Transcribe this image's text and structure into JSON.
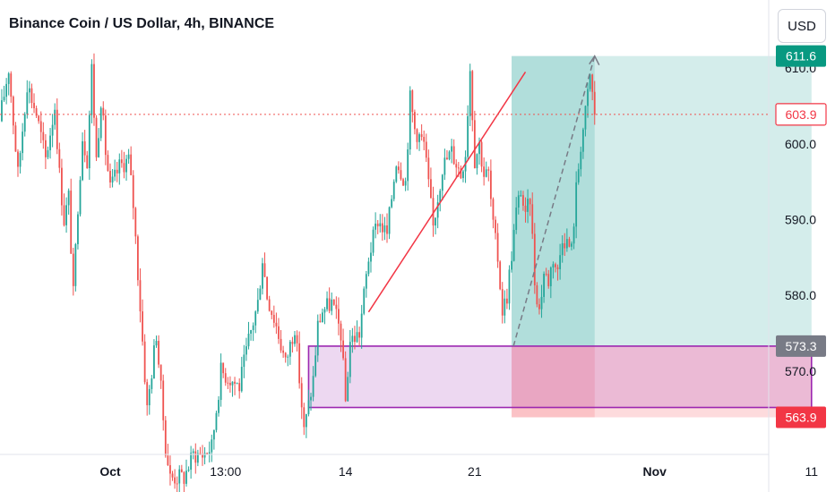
{
  "header": {
    "title": "Binance Coin / US Dollar, 4h, BINANCE",
    "currency_button": "USD"
  },
  "colors": {
    "up": "#26a69a",
    "down": "#ef5350",
    "profit_zone": "#26a69a",
    "loss_zone": "#f23645",
    "demand_zone": "#9c27b0",
    "trendline": "#f23645"
  },
  "chart_data": {
    "type": "candlestick",
    "symbol": "Binance Coin / US Dollar",
    "interval": "4h",
    "exchange": "BINANCE",
    "y_range": [
      559,
      619
    ],
    "y_ticks": [
      570.0,
      580.0,
      590.0,
      600.0,
      610.0
    ],
    "x_ticks": [
      {
        "label": "Oct",
        "x": 6
      },
      {
        "label": "13:00",
        "x": 18.5
      },
      {
        "label": "14",
        "x": 31.5
      },
      {
        "label": "21",
        "x": 45.5
      },
      {
        "label": "Nov",
        "x": 65
      },
      {
        "label": "11",
        "x": 82
      }
    ],
    "price_labels": [
      {
        "name": "target",
        "label": "611.6",
        "value": 611.6,
        "color": "#089981"
      },
      {
        "name": "current",
        "label": "603.9",
        "value": 603.9,
        "color": "#f23645",
        "outlined": true
      },
      {
        "name": "entry",
        "label": "573.3",
        "value": 573.3,
        "color": "#787b86"
      },
      {
        "name": "stop",
        "label": "563.9",
        "value": 563.9,
        "color": "#f23645"
      }
    ],
    "current_price": 603.9,
    "anchors": [
      [
        -6,
        603
      ],
      [
        -5,
        610
      ],
      [
        -4,
        596
      ],
      [
        -3,
        608
      ],
      [
        -2,
        604
      ],
      [
        -1,
        598
      ],
      [
        0,
        605
      ],
      [
        0.5,
        596
      ],
      [
        1,
        590
      ],
      [
        1.5,
        593
      ],
      [
        2,
        580
      ],
      [
        2.5,
        592
      ],
      [
        3,
        601
      ],
      [
        3.5,
        598
      ],
      [
        4,
        610
      ],
      [
        4.5,
        598
      ],
      [
        5,
        606
      ],
      [
        5.5,
        599
      ],
      [
        6,
        594
      ],
      [
        7,
        597
      ],
      [
        8,
        598
      ],
      [
        8.5,
        592
      ],
      [
        9,
        583
      ],
      [
        10,
        565
      ],
      [
        11,
        575
      ],
      [
        12,
        560
      ],
      [
        12.5,
        556
      ],
      [
        14,
        556
      ],
      [
        15,
        559
      ],
      [
        16,
        559
      ],
      [
        17,
        560
      ],
      [
        18,
        570
      ],
      [
        19,
        569
      ],
      [
        20,
        568
      ],
      [
        21,
        574
      ],
      [
        22,
        579
      ],
      [
        22.5,
        585
      ],
      [
        23,
        580
      ],
      [
        24,
        576
      ],
      [
        25,
        571
      ],
      [
        26,
        576
      ],
      [
        27,
        562
      ],
      [
        28,
        569
      ],
      [
        28.5,
        576
      ],
      [
        29,
        578
      ],
      [
        30,
        579
      ],
      [
        31,
        575
      ],
      [
        31.5,
        566
      ],
      [
        32,
        574
      ],
      [
        33,
        575
      ],
      [
        34,
        585
      ],
      [
        35,
        590
      ],
      [
        36,
        588
      ],
      [
        37,
        598
      ],
      [
        38,
        595
      ],
      [
        38.5,
        606
      ],
      [
        39,
        602
      ],
      [
        40,
        600
      ],
      [
        41,
        589
      ],
      [
        42,
        597
      ],
      [
        43,
        599
      ],
      [
        44,
        596
      ],
      [
        44.5,
        599
      ],
      [
        45,
        610
      ],
      [
        45.5,
        598
      ],
      [
        46,
        600
      ],
      [
        46.5,
        596
      ],
      [
        47,
        596
      ],
      [
        47.5,
        589
      ],
      [
        48,
        585
      ],
      [
        48.5,
        578
      ],
      [
        49,
        580
      ],
      [
        50,
        591
      ],
      [
        50.5,
        594
      ],
      [
        51,
        590
      ],
      [
        51.5,
        593
      ],
      [
        52,
        582
      ],
      [
        52.5,
        578
      ],
      [
        53,
        583
      ],
      [
        53.5,
        582
      ],
      [
        54,
        585
      ],
      [
        54.5,
        583
      ],
      [
        55,
        588
      ],
      [
        56,
        586
      ],
      [
        56.5,
        594
      ],
      [
        57,
        600
      ],
      [
        57.5,
        604
      ],
      [
        58,
        609
      ],
      [
        58.5,
        604
      ]
    ],
    "long_position": {
      "x_start": 49.5,
      "x_end": 82,
      "entry": 573.3,
      "target": 611.6,
      "stop": 563.9,
      "filled_until_x": 58.5
    },
    "demand_zone": {
      "x_start": 27.5,
      "x_end": 82,
      "top": 573.3,
      "bottom": 565.2
    },
    "trend_line": {
      "x1": 34,
      "y1": 577.8,
      "x2": 51,
      "y2": 609.5
    },
    "projection_arrow": {
      "x1": 49.7,
      "y1": 573.3,
      "x2": 58.5,
      "y2": 611.6
    }
  }
}
